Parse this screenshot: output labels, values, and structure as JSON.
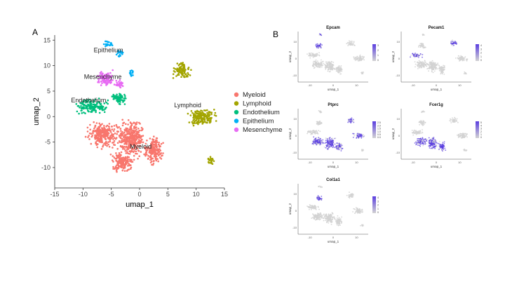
{
  "chart_data": [
    {
      "type": "scatter",
      "panel": "A",
      "title": "",
      "xlabel": "umap_1",
      "ylabel": "umap_2",
      "xlim": [
        -15,
        15
      ],
      "ylim": [
        -14,
        16
      ],
      "xticks": [
        -15,
        -10,
        -5,
        0,
        5,
        10,
        15
      ],
      "yticks": [
        -10,
        -5,
        0,
        5,
        10,
        15
      ],
      "legend_position": "right",
      "series": [
        {
          "name": "Myeloid",
          "color": "#F8766D",
          "blobs": [
            [
              -6.5,
              -3.5,
              3.5,
              3.0
            ],
            [
              -1.5,
              -4.5,
              3.0,
              4.5
            ],
            [
              2.5,
              -6.5,
              2.0,
              3.5
            ],
            [
              -3.0,
              -9.0,
              2.5,
              2.5
            ]
          ],
          "cluster_label": "Myeloid",
          "label_at": [
            0.2,
            -6.3
          ]
        },
        {
          "name": "Lymphoid",
          "color": "#A3A500",
          "blobs": [
            [
              7.5,
              9.0,
              2.0,
              2.0
            ],
            [
              11.0,
              0.0,
              3.0,
              2.2
            ],
            [
              12.5,
              -8.7,
              1.0,
              1.0
            ]
          ],
          "cluster_label": "Lymphoid",
          "label_at": [
            8.5,
            1.8
          ]
        },
        {
          "name": "Endothelium",
          "color": "#00BF7D",
          "blobs": [
            [
              -8.5,
              2.0,
              3.5,
              1.8
            ],
            [
              -3.5,
              3.5,
              1.8,
              1.5
            ]
          ],
          "cluster_label": "Endothelium",
          "label_at": [
            -9.0,
            2.8
          ]
        },
        {
          "name": "Epithelium",
          "color": "#00B0F6",
          "blobs": [
            [
              -5.5,
              14.2,
              1.0,
              0.9
            ],
            [
              -3.5,
              12.5,
              0.8,
              1.0
            ],
            [
              -1.5,
              8.5,
              0.6,
              1.0
            ]
          ],
          "cluster_label": "Epithelium",
          "label_at": [
            -5.5,
            12.6
          ]
        },
        {
          "name": "Mesenchyme",
          "color": "#E76BF3",
          "blobs": [
            [
              -6.0,
              7.5,
              2.0,
              2.0
            ],
            [
              -3.5,
              6.5,
              1.0,
              1.2
            ]
          ],
          "cluster_label": "Mesenchyme",
          "label_at": [
            -6.5,
            7.4
          ]
        }
      ]
    },
    {
      "type": "scatter",
      "panel": "B",
      "layout": "feature-plot grid",
      "panels": [
        {
          "title": "Epcam",
          "scale_ticks": [
            "3",
            "2",
            "1",
            "0"
          ],
          "xlabel": "umap_1",
          "ylabel": "umap_2"
        },
        {
          "title": "Pecam1",
          "scale_ticks": [
            "4",
            "3",
            "2",
            "1",
            "0"
          ],
          "xlabel": "umap_1",
          "ylabel": "umap_2"
        },
        {
          "title": "Ptprc",
          "scale_ticks": [
            "2.5",
            "2.0",
            "1.5",
            "1.0",
            "0.5",
            "0.0"
          ],
          "xlabel": "umap_1",
          "ylabel": "umap_2"
        },
        {
          "title": "Fcer1g",
          "scale_ticks": [
            "5",
            "4",
            "3",
            "2",
            "1",
            "0"
          ],
          "xlabel": "umap_1",
          "ylabel": "umap_2"
        },
        {
          "title": "Col1a1",
          "scale_ticks": [
            "4",
            "3",
            "2",
            "1",
            "0"
          ],
          "xlabel": "umap_1",
          "ylabel": "umap_2"
        }
      ],
      "xticks": [
        "-10",
        "0",
        "10"
      ],
      "yticks": [
        "10",
        "0",
        "-10"
      ],
      "xlim": [
        -15,
        15
      ],
      "ylim": [
        -14,
        16
      ],
      "colors": {
        "low": "#d3d3d3",
        "high": "#5a3ee0"
      }
    }
  ],
  "labels": {
    "panel_a": "A",
    "panel_b": "B"
  }
}
